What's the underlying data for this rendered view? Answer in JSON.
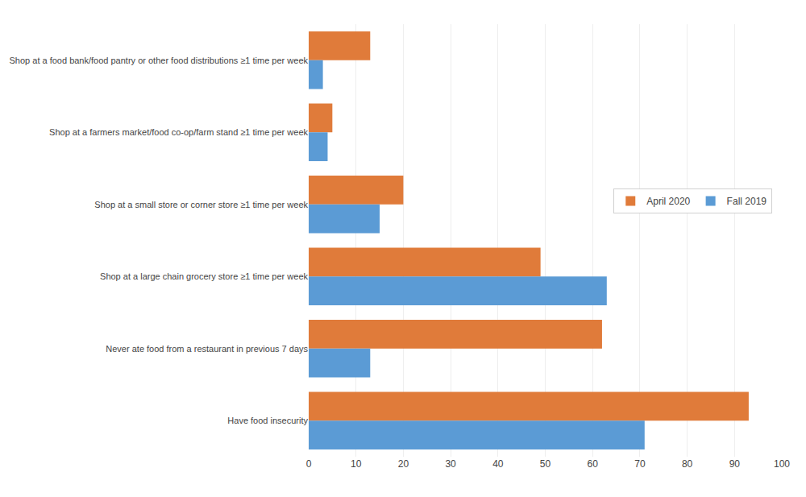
{
  "chart_data": {
    "type": "bar",
    "orientation": "horizontal",
    "categories": [
      "Shop at a food bank/food pantry or other food distributions ≥1 time per week",
      "Shop at a farmers market/food co-op/farm stand ≥1 time per week",
      "Shop at a small store or corner store ≥1 time per week",
      "Shop at a large chain grocery store ≥1 time per week",
      "Never ate food from a restaurant in previous 7 days",
      "Have food insecurity"
    ],
    "series": [
      {
        "name": "April 2020",
        "color": "#E07B3A",
        "values": [
          13,
          5,
          20,
          49,
          62,
          93
        ]
      },
      {
        "name": "Fall 2019",
        "color": "#5B9BD5",
        "values": [
          3,
          4,
          15,
          63,
          13,
          71
        ]
      }
    ],
    "xlim": [
      0,
      100
    ],
    "xticks": [
      0,
      10,
      20,
      30,
      40,
      50,
      60,
      70,
      80,
      90,
      100
    ],
    "grid": true,
    "legend": "right"
  }
}
